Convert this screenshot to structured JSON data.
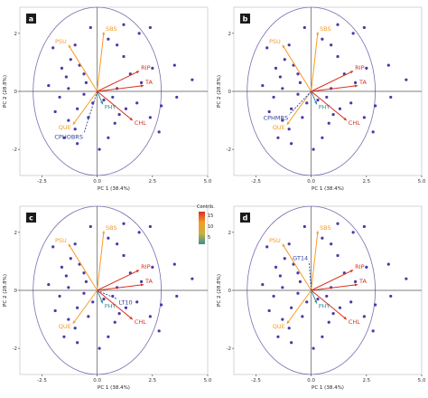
{
  "figure": {
    "colorbar": {
      "title": "Contrib.",
      "ticks": [
        "15",
        "10",
        "5"
      ]
    }
  },
  "colors": {
    "points": "#4a3aa8",
    "circle": "#7a6fb0",
    "axis": "#555555",
    "high": "#d7301f",
    "mid": "#f59b2a",
    "low": "#3b8f95",
    "sup": "#2f3f9e",
    "panel_bg": "#ffffff"
  },
  "chart_data": [
    {
      "type": "scatter",
      "panel": "a",
      "xlabel": "PC 1 (38.4%)",
      "ylabel": "PC 2 (28.8%)",
      "xlim": [
        -3.5,
        5.0
      ],
      "ylim": [
        -2.9,
        2.9
      ],
      "xticks": [
        "-2.5",
        "0.0",
        "2.5",
        "5.0"
      ],
      "yticks": [
        "2",
        "0",
        "-2"
      ],
      "points": [
        [
          -1.0,
          1.6
        ],
        [
          -1.6,
          0.8
        ],
        [
          -1.4,
          0.5
        ],
        [
          -2.2,
          0.2
        ],
        [
          -1.7,
          -0.2
        ],
        [
          -1.3,
          0.1
        ],
        [
          -0.8,
          0.9
        ],
        [
          -0.6,
          0.6
        ],
        [
          -0.5,
          0.3
        ],
        [
          -0.6,
          -0.1
        ],
        [
          -0.2,
          -0.4
        ],
        [
          -0.9,
          -0.6
        ],
        [
          -1.3,
          -1.0
        ],
        [
          -1.0,
          -1.3
        ],
        [
          -1.5,
          -1.6
        ],
        [
          -0.9,
          -1.8
        ],
        [
          0.1,
          -2.0
        ],
        [
          0.5,
          -1.6
        ],
        [
          0.8,
          -1.1
        ],
        [
          1.0,
          -0.8
        ],
        [
          1.3,
          -0.6
        ],
        [
          1.8,
          -0.4
        ],
        [
          2.4,
          -0.9
        ],
        [
          2.8,
          -1.4
        ],
        [
          2.9,
          -0.5
        ],
        [
          2.0,
          0.3
        ],
        [
          2.5,
          0.8
        ],
        [
          3.5,
          0.9
        ],
        [
          4.3,
          0.4
        ],
        [
          1.2,
          1.2
        ],
        [
          0.9,
          1.6
        ],
        [
          1.2,
          2.3
        ],
        [
          1.9,
          2.0
        ],
        [
          2.4,
          2.2
        ],
        [
          0.5,
          1.8
        ],
        [
          -0.3,
          2.2
        ],
        [
          -1.2,
          1.1
        ],
        [
          -2.0,
          1.5
        ],
        [
          0.3,
          -0.3
        ],
        [
          1.5,
          0.6
        ],
        [
          -0.4,
          -0.9
        ],
        [
          0.7,
          -0.2
        ],
        [
          -1.9,
          -0.7
        ],
        [
          3.6,
          -0.2
        ],
        [
          0.9,
          0.1
        ]
      ],
      "vectors": [
        {
          "label": "SBS",
          "x": 0.3,
          "y": 2.05,
          "level": "mid"
        },
        {
          "label": "PSU",
          "x": -1.3,
          "y": 1.6,
          "level": "mid"
        },
        {
          "label": "RIP",
          "x": 1.9,
          "y": 0.7,
          "level": "high"
        },
        {
          "label": "TA",
          "x": 2.1,
          "y": 0.2,
          "level": "high"
        },
        {
          "label": "CHL",
          "x": 1.6,
          "y": -1.0,
          "level": "high"
        },
        {
          "label": "PHY",
          "x": 0.25,
          "y": -0.45,
          "level": "low"
        },
        {
          "label": "QUE",
          "x": -1.1,
          "y": -1.15,
          "level": "mid"
        }
      ],
      "supplementary": [
        {
          "label": "CPHOBRS",
          "x": -0.6,
          "y": -1.45,
          "dashed": true
        }
      ]
    },
    {
      "type": "scatter",
      "panel": "b",
      "xlabel": "PC 1 (38.4%)",
      "ylabel": "PC 2 (28.8%)",
      "xlim": [
        -3.5,
        5.0
      ],
      "ylim": [
        -2.9,
        2.9
      ],
      "xticks": [
        "-2.5",
        "0.0",
        "2.5",
        "5.0"
      ],
      "yticks": [
        "2",
        "0",
        "-2"
      ],
      "points": [
        [
          -1.0,
          1.6
        ],
        [
          -1.6,
          0.8
        ],
        [
          -1.4,
          0.5
        ],
        [
          -2.2,
          0.2
        ],
        [
          -1.7,
          -0.2
        ],
        [
          -1.3,
          0.1
        ],
        [
          -0.8,
          0.9
        ],
        [
          -0.6,
          0.6
        ],
        [
          -0.5,
          0.3
        ],
        [
          -0.6,
          -0.1
        ],
        [
          -0.2,
          -0.4
        ],
        [
          -0.9,
          -0.6
        ],
        [
          -1.3,
          -1.0
        ],
        [
          -1.0,
          -1.3
        ],
        [
          -1.5,
          -1.6
        ],
        [
          -0.9,
          -1.8
        ],
        [
          0.1,
          -2.0
        ],
        [
          0.5,
          -1.6
        ],
        [
          0.8,
          -1.1
        ],
        [
          1.0,
          -0.8
        ],
        [
          1.3,
          -0.6
        ],
        [
          1.8,
          -0.4
        ],
        [
          2.4,
          -0.9
        ],
        [
          2.8,
          -1.4
        ],
        [
          2.9,
          -0.5
        ],
        [
          2.0,
          0.3
        ],
        [
          2.5,
          0.8
        ],
        [
          3.5,
          0.9
        ],
        [
          4.3,
          0.4
        ],
        [
          1.2,
          1.2
        ],
        [
          0.9,
          1.6
        ],
        [
          1.2,
          2.3
        ],
        [
          1.9,
          2.0
        ],
        [
          2.4,
          2.2
        ],
        [
          0.5,
          1.8
        ],
        [
          -0.3,
          2.2
        ],
        [
          -1.2,
          1.1
        ],
        [
          -2.0,
          1.5
        ],
        [
          0.3,
          -0.3
        ],
        [
          1.5,
          0.6
        ],
        [
          -0.4,
          -0.9
        ],
        [
          0.7,
          -0.2
        ],
        [
          -1.9,
          -0.7
        ],
        [
          3.6,
          -0.2
        ],
        [
          0.9,
          0.1
        ]
      ],
      "vectors": [
        {
          "label": "SBS",
          "x": 0.3,
          "y": 2.05,
          "level": "mid"
        },
        {
          "label": "PSU",
          "x": -1.3,
          "y": 1.6,
          "level": "mid"
        },
        {
          "label": "RIP",
          "x": 1.9,
          "y": 0.7,
          "level": "high"
        },
        {
          "label": "TA",
          "x": 2.1,
          "y": 0.2,
          "level": "high"
        },
        {
          "label": "CHL",
          "x": 1.6,
          "y": -1.0,
          "level": "high"
        },
        {
          "label": "PHY",
          "x": 0.25,
          "y": -0.45,
          "level": "low"
        },
        {
          "label": "QUE",
          "x": -1.1,
          "y": -1.15,
          "level": "mid"
        }
      ],
      "supplementary": [
        {
          "label": "CPHMRS",
          "x": -1.0,
          "y": -0.8,
          "dashed": true
        }
      ]
    },
    {
      "type": "scatter",
      "panel": "c",
      "xlabel": "PC 1 (38.4%)",
      "ylabel": "PC 2 (28.8%)",
      "xlim": [
        -3.5,
        5.0
      ],
      "ylim": [
        -2.9,
        2.9
      ],
      "xticks": [
        "-2.5",
        "0.0",
        "2.5",
        "5.0"
      ],
      "yticks": [
        "2",
        "0",
        "-2"
      ],
      "points": [
        [
          -1.0,
          1.6
        ],
        [
          -1.6,
          0.8
        ],
        [
          -1.4,
          0.5
        ],
        [
          -2.2,
          0.2
        ],
        [
          -1.7,
          -0.2
        ],
        [
          -1.3,
          0.1
        ],
        [
          -0.8,
          0.9
        ],
        [
          -0.6,
          0.6
        ],
        [
          -0.5,
          0.3
        ],
        [
          -0.6,
          -0.1
        ],
        [
          -0.2,
          -0.4
        ],
        [
          -0.9,
          -0.6
        ],
        [
          -1.3,
          -1.0
        ],
        [
          -1.0,
          -1.3
        ],
        [
          -1.5,
          -1.6
        ],
        [
          -0.9,
          -1.8
        ],
        [
          0.1,
          -2.0
        ],
        [
          0.5,
          -1.6
        ],
        [
          0.8,
          -1.1
        ],
        [
          1.0,
          -0.8
        ],
        [
          1.3,
          -0.6
        ],
        [
          1.8,
          -0.4
        ],
        [
          2.4,
          -0.9
        ],
        [
          2.8,
          -1.4
        ],
        [
          2.9,
          -0.5
        ],
        [
          2.0,
          0.3
        ],
        [
          2.5,
          0.8
        ],
        [
          3.5,
          0.9
        ],
        [
          4.3,
          0.4
        ],
        [
          1.2,
          1.2
        ],
        [
          0.9,
          1.6
        ],
        [
          1.2,
          2.3
        ],
        [
          1.9,
          2.0
        ],
        [
          2.4,
          2.2
        ],
        [
          0.5,
          1.8
        ],
        [
          -0.3,
          2.2
        ],
        [
          -1.2,
          1.1
        ],
        [
          -2.0,
          1.5
        ],
        [
          0.3,
          -0.3
        ],
        [
          1.5,
          0.6
        ],
        [
          -0.4,
          -0.9
        ],
        [
          0.7,
          -0.2
        ],
        [
          -1.9,
          -0.7
        ],
        [
          3.6,
          -0.2
        ],
        [
          0.9,
          0.1
        ]
      ],
      "vectors": [
        {
          "label": "SBS",
          "x": 0.3,
          "y": 2.05,
          "level": "mid"
        },
        {
          "label": "PSU",
          "x": -1.3,
          "y": 1.6,
          "level": "mid"
        },
        {
          "label": "RIP",
          "x": 1.9,
          "y": 0.7,
          "level": "high"
        },
        {
          "label": "TA",
          "x": 2.1,
          "y": 0.2,
          "level": "high"
        },
        {
          "label": "CHL",
          "x": 1.6,
          "y": -1.0,
          "level": "high"
        },
        {
          "label": "PHY",
          "x": 0.25,
          "y": -0.45,
          "level": "low"
        },
        {
          "label": "QUE",
          "x": -1.1,
          "y": -1.15,
          "level": "mid"
        }
      ],
      "supplementary": [
        {
          "label": "LT10",
          "x": 0.9,
          "y": -0.3,
          "dashed": true
        }
      ]
    },
    {
      "type": "scatter",
      "panel": "d",
      "xlabel": "PC 1 (38.4%)",
      "ylabel": "PC 2 (28.8%)",
      "xlim": [
        -3.5,
        5.0
      ],
      "ylim": [
        -2.9,
        2.9
      ],
      "xticks": [
        "-2.5",
        "0.0",
        "2.5",
        "5.0"
      ],
      "yticks": [
        "2",
        "0",
        "-2"
      ],
      "points": [
        [
          -1.0,
          1.6
        ],
        [
          -1.6,
          0.8
        ],
        [
          -1.4,
          0.5
        ],
        [
          -2.2,
          0.2
        ],
        [
          -1.7,
          -0.2
        ],
        [
          -1.3,
          0.1
        ],
        [
          -0.8,
          0.9
        ],
        [
          -0.6,
          0.6
        ],
        [
          -0.5,
          0.3
        ],
        [
          -0.6,
          -0.1
        ],
        [
          -0.2,
          -0.4
        ],
        [
          -0.9,
          -0.6
        ],
        [
          -1.3,
          -1.0
        ],
        [
          -1.0,
          -1.3
        ],
        [
          -1.5,
          -1.6
        ],
        [
          -0.9,
          -1.8
        ],
        [
          0.1,
          -2.0
        ],
        [
          0.5,
          -1.6
        ],
        [
          0.8,
          -1.1
        ],
        [
          1.0,
          -0.8
        ],
        [
          1.3,
          -0.6
        ],
        [
          1.8,
          -0.4
        ],
        [
          2.4,
          -0.9
        ],
        [
          2.8,
          -1.4
        ],
        [
          2.9,
          -0.5
        ],
        [
          2.0,
          0.3
        ],
        [
          2.5,
          0.8
        ],
        [
          3.5,
          0.9
        ],
        [
          4.3,
          0.4
        ],
        [
          1.2,
          1.2
        ],
        [
          0.9,
          1.6
        ],
        [
          1.2,
          2.3
        ],
        [
          1.9,
          2.0
        ],
        [
          2.4,
          2.2
        ],
        [
          0.5,
          1.8
        ],
        [
          -0.3,
          2.2
        ],
        [
          -1.2,
          1.1
        ],
        [
          -2.0,
          1.5
        ],
        [
          0.3,
          -0.3
        ],
        [
          1.5,
          0.6
        ],
        [
          -0.4,
          -0.9
        ],
        [
          0.7,
          -0.2
        ],
        [
          -1.9,
          -0.7
        ],
        [
          3.6,
          -0.2
        ],
        [
          0.9,
          0.1
        ]
      ],
      "vectors": [
        {
          "label": "SBS",
          "x": 0.3,
          "y": 2.05,
          "level": "mid"
        },
        {
          "label": "PSU",
          "x": -1.3,
          "y": 1.6,
          "level": "mid"
        },
        {
          "label": "RIP",
          "x": 1.9,
          "y": 0.7,
          "level": "high"
        },
        {
          "label": "TA",
          "x": 2.1,
          "y": 0.2,
          "level": "high"
        },
        {
          "label": "CHL",
          "x": 1.6,
          "y": -1.0,
          "level": "high"
        },
        {
          "label": "PHY",
          "x": 0.25,
          "y": -0.45,
          "level": "low"
        },
        {
          "label": "QUE",
          "x": -1.1,
          "y": -1.15,
          "level": "mid"
        }
      ],
      "supplementary": [
        {
          "label": "GT14",
          "x": -0.1,
          "y": 1.0,
          "dashed": true
        }
      ]
    }
  ]
}
